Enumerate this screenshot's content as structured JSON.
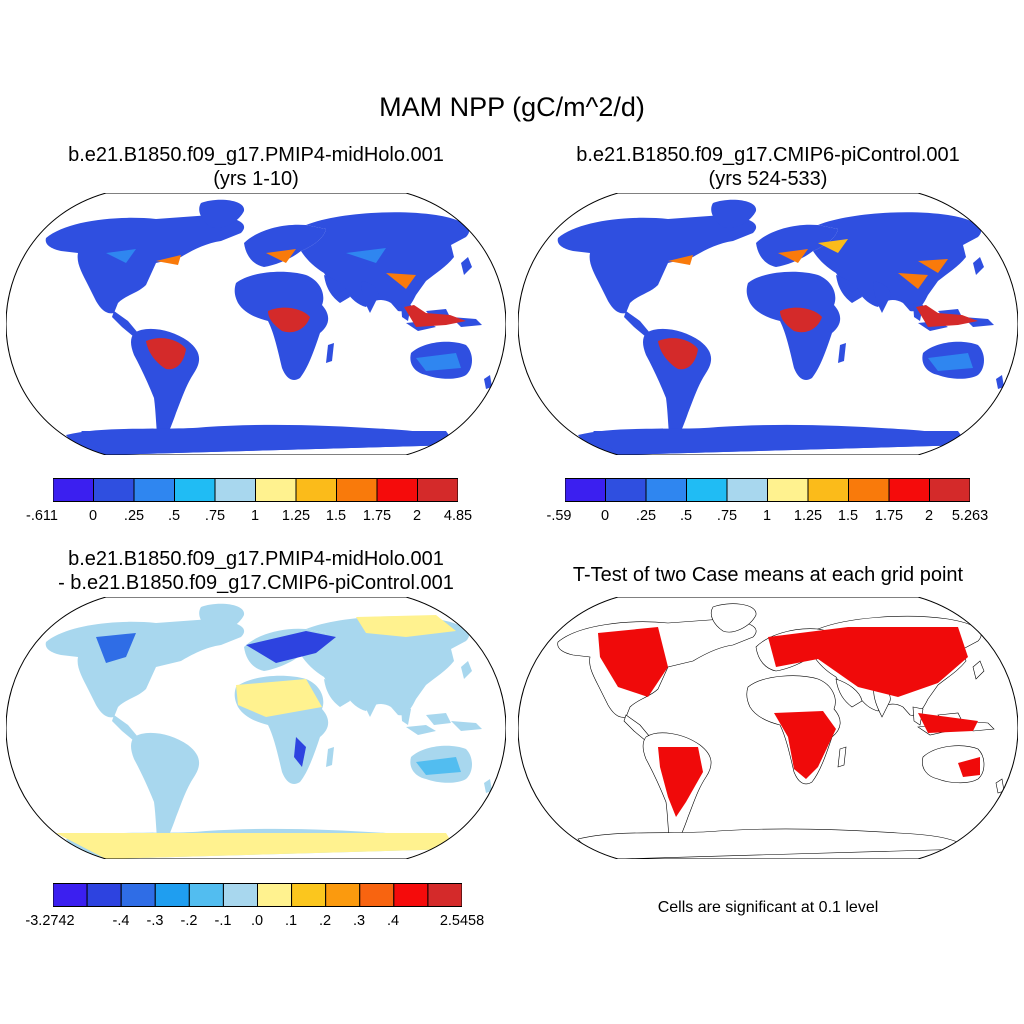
{
  "title": "MAM NPP (gC/m^2/d)",
  "colors": {
    "palette_npp": [
      "#3b1ff0",
      "#2f4fe0",
      "#2f86f0",
      "#20bcf4",
      "#a8d7ee",
      "#fff28f",
      "#fbbb1a",
      "#f97a0b",
      "#f50b0b",
      "#d42a2a"
    ],
    "palette_diff": [
      "#3b1ff0",
      "#2d43e0",
      "#2f6de6",
      "#1f9ef0",
      "#52bdf0",
      "#a8d7ee",
      "#fff28f",
      "#fbc61e",
      "#fb9a0e",
      "#f86410",
      "#f50b0b",
      "#d42a2a"
    ],
    "ocean": "#ffffff",
    "coast": "#000000",
    "significant": "#f00a0a"
  },
  "panels": [
    {
      "title_line1": "b.e21.B1850.f09_g17.PMIP4-midHolo.001",
      "title_line2": "(yrs 1-10)",
      "colorbar_labels": [
        "-.611",
        "0",
        ".25",
        ".5",
        ".75",
        "1",
        "1.25",
        "1.5",
        "1.75",
        "2",
        "4.85"
      ]
    },
    {
      "title_line1": "b.e21.B1850.f09_g17.CMIP6-piControl.001",
      "title_line2": "(yrs 524-533)",
      "colorbar_labels": [
        "-.59",
        "0",
        ".25",
        ".5",
        ".75",
        "1",
        "1.25",
        "1.5",
        "1.75",
        "2",
        "5.263"
      ]
    },
    {
      "title_line1": "b.e21.B1850.f09_g17.PMIP4-midHolo.001",
      "title_line2": "- b.e21.B1850.f09_g17.CMIP6-piControl.001",
      "colorbar_labels": [
        "-3.2742",
        "-.4",
        "-.3",
        "-.2",
        "-.1",
        ".0",
        ".1",
        ".2",
        ".3",
        ".4",
        "2.5458"
      ]
    },
    {
      "title_line1": "T-Test of two Case means at each grid point",
      "note": "Cells are significant at 0.1 level"
    }
  ]
}
